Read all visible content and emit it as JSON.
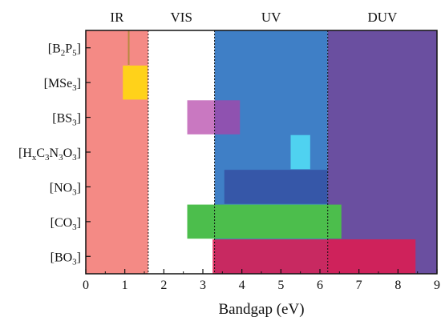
{
  "chart_data": {
    "type": "bar",
    "orientation": "horizontal-range",
    "xlabel": "Bandgap (eV)",
    "xlim": [
      0,
      9
    ],
    "xticks": [
      0,
      1,
      2,
      3,
      4,
      5,
      6,
      7,
      8,
      9
    ],
    "regions": [
      {
        "name": "IR",
        "from": 0,
        "to": 1.6,
        "color": "#f48a85"
      },
      {
        "name": "VIS",
        "from": 1.6,
        "to": 3.3,
        "color": "#ffffff"
      },
      {
        "name": "UV",
        "from": 3.3,
        "to": 6.2,
        "color": "#3f7fc6"
      },
      {
        "name": "DUV",
        "from": 6.2,
        "to": 9.0,
        "color": "#6a4fa0"
      }
    ],
    "categories": [
      {
        "parts": [
          {
            "t": "[B"
          },
          {
            "t": "2",
            "sub": true
          },
          {
            "t": "P"
          },
          {
            "t": "5",
            "sub": true
          },
          {
            "t": "]"
          }
        ]
      },
      {
        "parts": [
          {
            "t": "[MSe"
          },
          {
            "t": "3",
            "sub": true
          },
          {
            "t": "]"
          }
        ]
      },
      {
        "parts": [
          {
            "t": "[BS"
          },
          {
            "t": "3",
            "sub": true
          },
          {
            "t": "]"
          }
        ]
      },
      {
        "parts": [
          {
            "t": "[H"
          },
          {
            "t": "x",
            "sub": true
          },
          {
            "t": "C"
          },
          {
            "t": "3",
            "sub": true
          },
          {
            "t": "N"
          },
          {
            "t": "3",
            "sub": true
          },
          {
            "t": "O"
          },
          {
            "t": "3",
            "sub": true
          },
          {
            "t": "]"
          }
        ]
      },
      {
        "parts": [
          {
            "t": "[NO"
          },
          {
            "t": "3",
            "sub": true
          },
          {
            "t": "]"
          }
        ]
      },
      {
        "parts": [
          {
            "t": "[CO"
          },
          {
            "t": "3",
            "sub": true
          },
          {
            "t": "]"
          }
        ]
      },
      {
        "parts": [
          {
            "t": "[BO"
          },
          {
            "t": "3",
            "sub": true
          },
          {
            "t": "]"
          }
        ]
      }
    ],
    "ranges": [
      {
        "min": 1.08,
        "max": 1.12,
        "color": "#b7893f",
        "opacity": 1
      },
      {
        "min": 0.95,
        "max": 1.58,
        "color": "#ffd21a",
        "opacity": 1
      },
      {
        "min": 2.6,
        "max": 3.95,
        "color": "#b23fa6",
        "opacity": 0.7
      },
      {
        "min": 5.25,
        "max": 5.75,
        "color": "#4fd2f0",
        "opacity": 1
      },
      {
        "min": 3.55,
        "max": 6.2,
        "color": "#3657a8",
        "opacity": 1
      },
      {
        "min": 2.6,
        "max": 6.55,
        "color": "#4cbe4c",
        "opacity": 1
      },
      {
        "min": 3.25,
        "max": 8.45,
        "color": "#e01a4f",
        "opacity": 0.85
      }
    ],
    "boundaries": [
      1.6,
      3.3,
      6.2
    ]
  }
}
